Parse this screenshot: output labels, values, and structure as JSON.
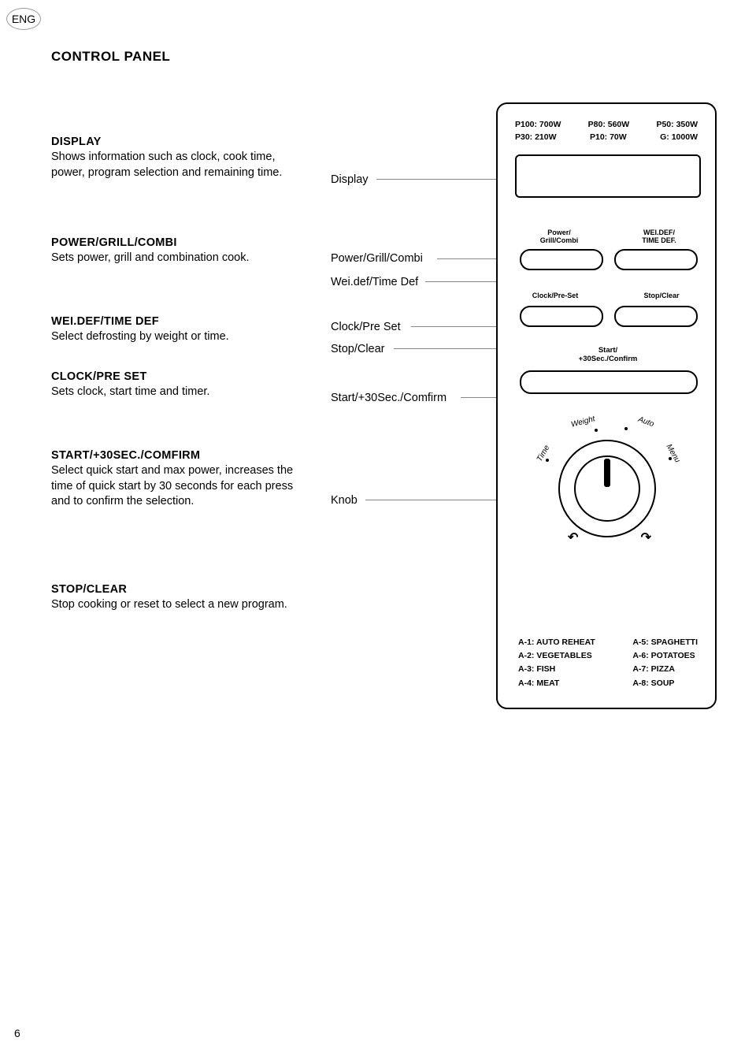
{
  "page": {
    "lang_badge": "ENG",
    "title": "CONTROL PANEL",
    "number": "6"
  },
  "sections": {
    "display": {
      "head": "DISPLAY",
      "body": "Shows information such as clock, cook time, power, program selection and remaining time."
    },
    "power": {
      "head": "POWER/GRILL/COMBI",
      "body": "Sets power, grill and combination cook."
    },
    "wei": {
      "head": "WEI.DEF/TIME DEF",
      "body": "Select defrosting by weight or time."
    },
    "clock": {
      "head": "CLOCK/PRE SET",
      "body": "Sets clock, start time and timer."
    },
    "start": {
      "head": "START/+30SEC./COMFIRM",
      "body": "Select quick start and max power, increases the time of quick start by 30 seconds for each press and to confirm the selection."
    },
    "stop": {
      "head": "STOP/CLEAR",
      "body": "Stop cooking or reset to select a new program."
    }
  },
  "mid_labels": {
    "display": "Display",
    "power": "Power/Grill/Combi",
    "wei": "Wei.def/Time Def",
    "clockpre": "Clock/Pre Set",
    "stopclear": "Stop/Clear",
    "start30": "Start/+30Sec./Comfirm",
    "knob": "Knob"
  },
  "panel": {
    "power_row1": {
      "a": "P100: 700W",
      "b": "P80: 560W",
      "c": "P50: 350W"
    },
    "power_row2": {
      "a": "P30: 210W",
      "b": "P10: 70W",
      "c": "G: 1000W"
    },
    "btn_labels": {
      "power": "Power/\nGrill/Combi",
      "weidef": "WEI.DEF/\nTIME DEF.",
      "clockpre": "Clock/Pre-Set",
      "stopclear": "Stop/Clear",
      "start30": "Start/\n+30Sec./Confirm"
    },
    "knob_labels": {
      "time": "Time",
      "weight": "Weight",
      "auto": "Auto",
      "menu": "Menu"
    },
    "auto_left": [
      "A-1: AUTO REHEAT",
      "A-2: VEGETABLES",
      "A-3: FISH",
      "A-4: MEAT"
    ],
    "auto_right": [
      "A-5: SPAGHETTI",
      "A-6: POTATOES",
      "A-7: PIZZA",
      "A-8: SOUP"
    ]
  }
}
